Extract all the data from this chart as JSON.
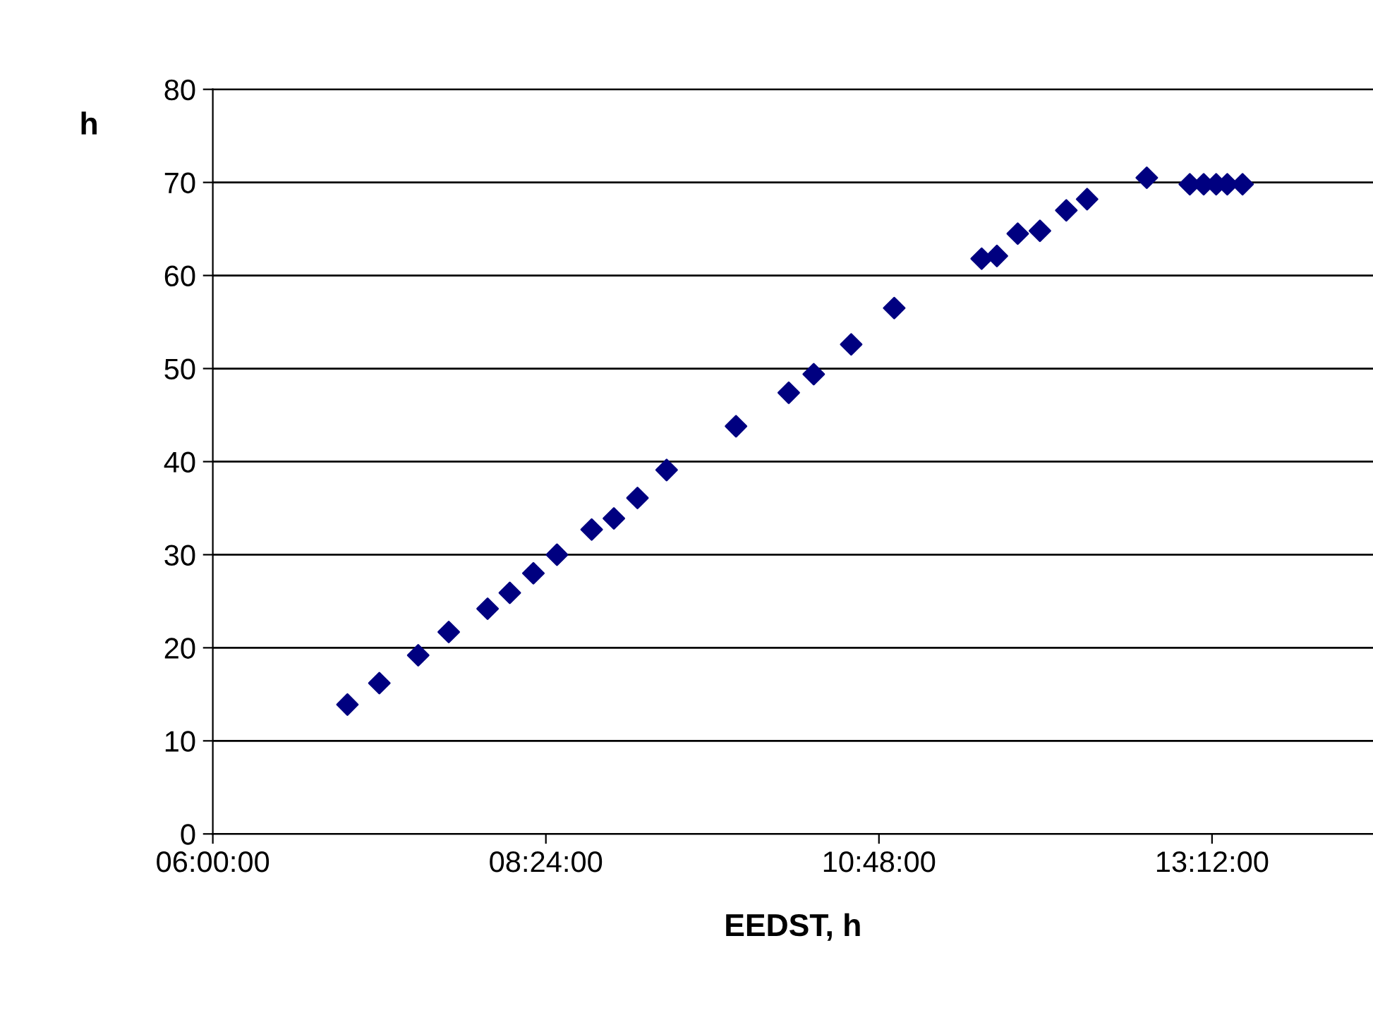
{
  "chart_data": {
    "type": "scatter",
    "xlabel": "EEDST, h",
    "ylabel": "h",
    "x": [
      6.97,
      7.2,
      7.48,
      7.7,
      7.98,
      8.14,
      8.31,
      8.48,
      8.73,
      8.89,
      9.06,
      9.27,
      9.77,
      10.15,
      10.33,
      10.6,
      10.91,
      11.54,
      11.65,
      11.8,
      11.96,
      12.15,
      12.3,
      12.73,
      13.04,
      13.14,
      13.23,
      13.31,
      13.42
    ],
    "series": [
      {
        "color": "#000080",
        "values": [
          13.9,
          16.2,
          19.2,
          21.7,
          24.2,
          25.9,
          28.0,
          30.0,
          32.7,
          33.9,
          36.1,
          39.1,
          43.8,
          47.4,
          49.4,
          52.6,
          56.5,
          61.8,
          62.1,
          64.5,
          64.8,
          67.0,
          68.2,
          70.5,
          69.8,
          69.8,
          69.8,
          69.8,
          69.8
        ]
      }
    ],
    "xlim": [
      6,
      14.36
    ],
    "xticks": [
      {
        "value": 6,
        "label": "06:00:00"
      },
      {
        "value": 8.4,
        "label": "08:24:00"
      },
      {
        "value": 10.8,
        "label": "10:48:00"
      },
      {
        "value": 13.2,
        "label": "13:12:00"
      }
    ],
    "ylim": [
      0,
      80
    ],
    "yticks": [
      0,
      10,
      20,
      30,
      40,
      50,
      60,
      70,
      80
    ],
    "grid": "y",
    "marker": "diamond"
  }
}
